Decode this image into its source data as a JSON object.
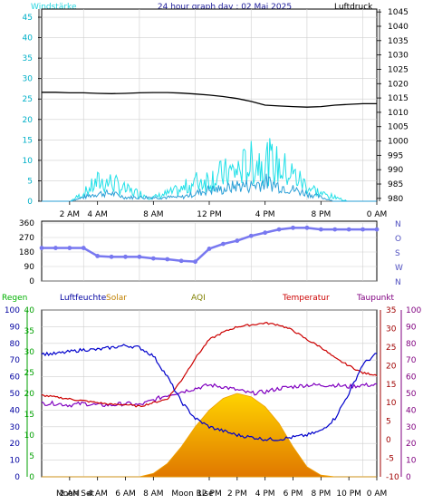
{
  "header": {
    "title": "24 hour graph day : 02 Mai 2025",
    "left_label": "Windstärke",
    "right_label": "Luftdruck"
  },
  "colors": {
    "background": "#ffffff",
    "plot_bg": "#f8f8f8",
    "grid": "#cfcfcf",
    "wind_gust": "#22e0e8",
    "wind_avg": "#2a9fd6",
    "pressure": "#000000",
    "direction": "#7878f0",
    "humidity": "#0000cc",
    "temperature": "#cc0000",
    "dewpoint": "#8000c0",
    "solar": "#f0a000",
    "rain": "#00aa00",
    "axis_wind": "#00b0c8",
    "axis_rain": "#00a000",
    "axis_humidity": "#0000a0",
    "axis_temperature": "#a00000",
    "axis_dewpoint": "#800080",
    "aqi": "#808000"
  },
  "time_axis": {
    "labels_top": [
      "2 AM",
      "4 AM",
      "8 AM",
      "12 PM",
      "4 PM",
      "8 PM",
      "0 AM"
    ],
    "labels_bottom": [
      "2 AM",
      "4 AM",
      "6 AM",
      "8 AM",
      "12 PM",
      "2 PM",
      "4 PM",
      "6 PM",
      "8 PM",
      "10 PM",
      "0 AM"
    ],
    "labels_bottom_second": [
      "Moon Set",
      "Moon Rise"
    ]
  },
  "legend": {
    "rain": "Regen",
    "humidity": "Luftfeuchte",
    "solar": "Solar",
    "aqi": "AQI",
    "temperature": "Temperatur",
    "dewpoint": "Taupunkt"
  },
  "chart_data": [
    {
      "type": "line",
      "name": "wind-pressure",
      "xlabel": "",
      "ylabel": "Windstärke",
      "y2label": "Luftdruck",
      "ylim": [
        0,
        47
      ],
      "y2lim": [
        979,
        1046
      ],
      "yticks": [
        0,
        5,
        10,
        15,
        20,
        25,
        30,
        35,
        40,
        45
      ],
      "y2ticks": [
        980,
        985,
        990,
        995,
        1000,
        1005,
        1010,
        1015,
        1020,
        1025,
        1030,
        1035,
        1040,
        1045
      ],
      "x": [
        0,
        1,
        2,
        3,
        4,
        5,
        6,
        7,
        8,
        9,
        10,
        11,
        12,
        13,
        14,
        15,
        16,
        17,
        18,
        19,
        20,
        21,
        22,
        23,
        24
      ],
      "series": [
        {
          "name": "gust",
          "axis": "left",
          "values": [
            0,
            0,
            0,
            2,
            5,
            5,
            3,
            2,
            1,
            2,
            3,
            5,
            6,
            7,
            8,
            10,
            11,
            9,
            7,
            4,
            2,
            1,
            0,
            0,
            0
          ]
        },
        {
          "name": "average",
          "axis": "left",
          "values": [
            0,
            0,
            0,
            1,
            2,
            2,
            1,
            1,
            1,
            1,
            1,
            2,
            3,
            3,
            4,
            4,
            5,
            4,
            3,
            2,
            1,
            0,
            0,
            0,
            0
          ]
        },
        {
          "name": "pressure",
          "axis": "right",
          "values": [
            1017,
            1017,
            1016.8,
            1016.8,
            1016.6,
            1016.5,
            1016.6,
            1016.8,
            1016.9,
            1016.9,
            1016.7,
            1016.4,
            1016,
            1015.5,
            1014.8,
            1013.8,
            1012.5,
            1012.2,
            1012,
            1011.8,
            1012,
            1012.5,
            1012.8,
            1013,
            1013
          ]
        }
      ]
    },
    {
      "type": "scatter",
      "name": "wind-direction",
      "ylim": [
        0,
        360
      ],
      "yticks": [
        0,
        90,
        180,
        270,
        360
      ],
      "compass_labels": [
        "N",
        "W",
        "S",
        "O",
        "N"
      ],
      "x": [
        0,
        1,
        2,
        3,
        4,
        5,
        6,
        7,
        8,
        9,
        10,
        11,
        12,
        13,
        14,
        15,
        16,
        17,
        18,
        19,
        20,
        21,
        22,
        23,
        24
      ],
      "values": [
        205,
        205,
        205,
        205,
        155,
        150,
        150,
        150,
        140,
        135,
        125,
        120,
        200,
        230,
        250,
        280,
        300,
        320,
        330,
        330,
        320,
        320,
        320,
        320,
        320
      ]
    },
    {
      "type": "line",
      "name": "climate",
      "rain": {
        "ylim": [
          0,
          100
        ],
        "yticks": [
          0,
          10,
          20,
          30,
          40,
          50,
          60,
          70,
          80,
          90,
          100
        ]
      },
      "humidity": {
        "ylim": [
          0,
          40
        ],
        "yticks": [
          0,
          5,
          10,
          15,
          20,
          25,
          30,
          35,
          40
        ]
      },
      "temperature": {
        "ylim": [
          -10,
          35
        ],
        "yticks": [
          -10,
          -5,
          0,
          5,
          10,
          15,
          20,
          25,
          30,
          35
        ]
      },
      "dewpoint": {
        "ylim": [
          0,
          100
        ],
        "yticks": [
          0,
          10,
          20,
          30,
          40,
          50,
          60,
          70,
          80,
          90,
          100
        ]
      },
      "x": [
        0,
        1,
        2,
        3,
        4,
        5,
        6,
        7,
        8,
        9,
        10,
        11,
        12,
        13,
        14,
        15,
        16,
        17,
        18,
        19,
        20,
        21,
        22,
        23,
        24
      ],
      "series": [
        {
          "name": "humidity",
          "axis": "humidity",
          "values": [
            29.5,
            29.5,
            30,
            30.5,
            30.5,
            31,
            31.5,
            31,
            29,
            24,
            18,
            14,
            12,
            11,
            10,
            9.5,
            9,
            9,
            9.5,
            10,
            11,
            14,
            20,
            27,
            29.5
          ]
        },
        {
          "name": "temperature",
          "axis": "temperature",
          "values": [
            12,
            11.5,
            11,
            10.5,
            10,
            9.5,
            9.5,
            9,
            10,
            11,
            16,
            22,
            27,
            29,
            30.5,
            31,
            31.5,
            31,
            29.5,
            27,
            25,
            22,
            20,
            18,
            17.5
          ]
        },
        {
          "name": "dewpoint",
          "axis": "dewpoint",
          "values": [
            44,
            44,
            43,
            44,
            43,
            43,
            44,
            43,
            46,
            49,
            51,
            53,
            55,
            54,
            52,
            50,
            51,
            53,
            54,
            55,
            55,
            55,
            54,
            55,
            55
          ]
        },
        {
          "name": "solar",
          "axis": "rain",
          "values": [
            0,
            0,
            0,
            0,
            0,
            0,
            0,
            0,
            2,
            8,
            18,
            30,
            40,
            47,
            50,
            48,
            42,
            32,
            18,
            6,
            1,
            0,
            0,
            0,
            0
          ]
        }
      ]
    }
  ]
}
